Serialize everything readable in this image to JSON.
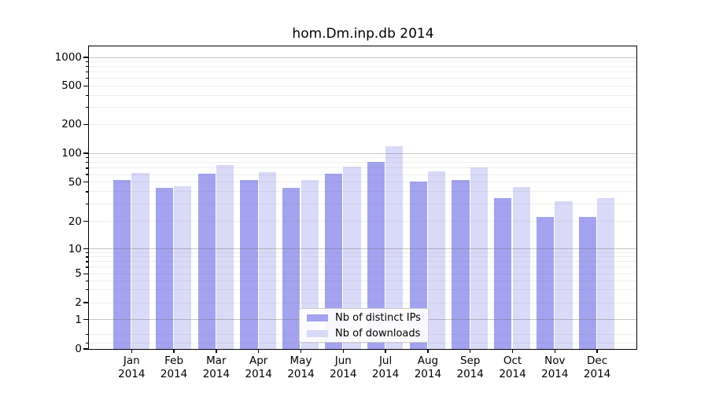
{
  "title": "hom.Dm.inp.db 2014",
  "legend": {
    "items": [
      {
        "label": "Nb of distinct IPs",
        "color": "#a3a3f0"
      },
      {
        "label": "Nb of downloads",
        "color": "#d9d9f8"
      }
    ]
  },
  "y_axis": {
    "tick_labels": [
      "1000",
      "500",
      "200",
      "100",
      "50",
      "20",
      "10",
      "5",
      "2",
      "1",
      "0"
    ],
    "tick_values": [
      1000,
      500,
      200,
      100,
      50,
      20,
      10,
      5,
      2,
      1,
      0
    ],
    "major_grid_values": [
      1,
      10,
      100,
      1000
    ],
    "minor_tick_values": [
      900,
      800,
      700,
      600,
      400,
      300,
      90,
      80,
      70,
      60,
      40,
      30,
      9,
      8,
      7,
      6,
      4,
      3,
      0.5,
      0.2
    ]
  },
  "x_axis": {
    "months": [
      "Jan",
      "Feb",
      "Mar",
      "Apr",
      "May",
      "Jun",
      "Jul",
      "Aug",
      "Sep",
      "Oct",
      "Nov",
      "Dec"
    ],
    "year": "2014"
  },
  "chart_data": {
    "type": "bar",
    "title": "hom.Dm.inp.db 2014",
    "categories": [
      "Jan 2014",
      "Feb 2014",
      "Mar 2014",
      "Apr 2014",
      "May 2014",
      "Jun 2014",
      "Jul 2014",
      "Aug 2014",
      "Sep 2014",
      "Oct 2014",
      "Nov 2014",
      "Dec 2014"
    ],
    "series": [
      {
        "name": "Nb of distinct IPs",
        "color": "#a3a3f0",
        "values": [
          52,
          43,
          61,
          52,
          43,
          61,
          81,
          50,
          52,
          34,
          22,
          22
        ]
      },
      {
        "name": "Nb of downloads",
        "color": "#d9d9f8",
        "values": [
          62,
          45,
          74,
          63,
          52,
          72,
          118,
          64,
          71,
          44,
          32,
          34
        ]
      }
    ],
    "ylabel": "",
    "xlabel": "",
    "yscale": "symlog",
    "yticks": [
      0,
      1,
      2,
      5,
      10,
      20,
      50,
      100,
      200,
      500,
      1000
    ],
    "ylim": [
      0,
      1300
    ],
    "grid": true,
    "legend_position": "lower center"
  }
}
